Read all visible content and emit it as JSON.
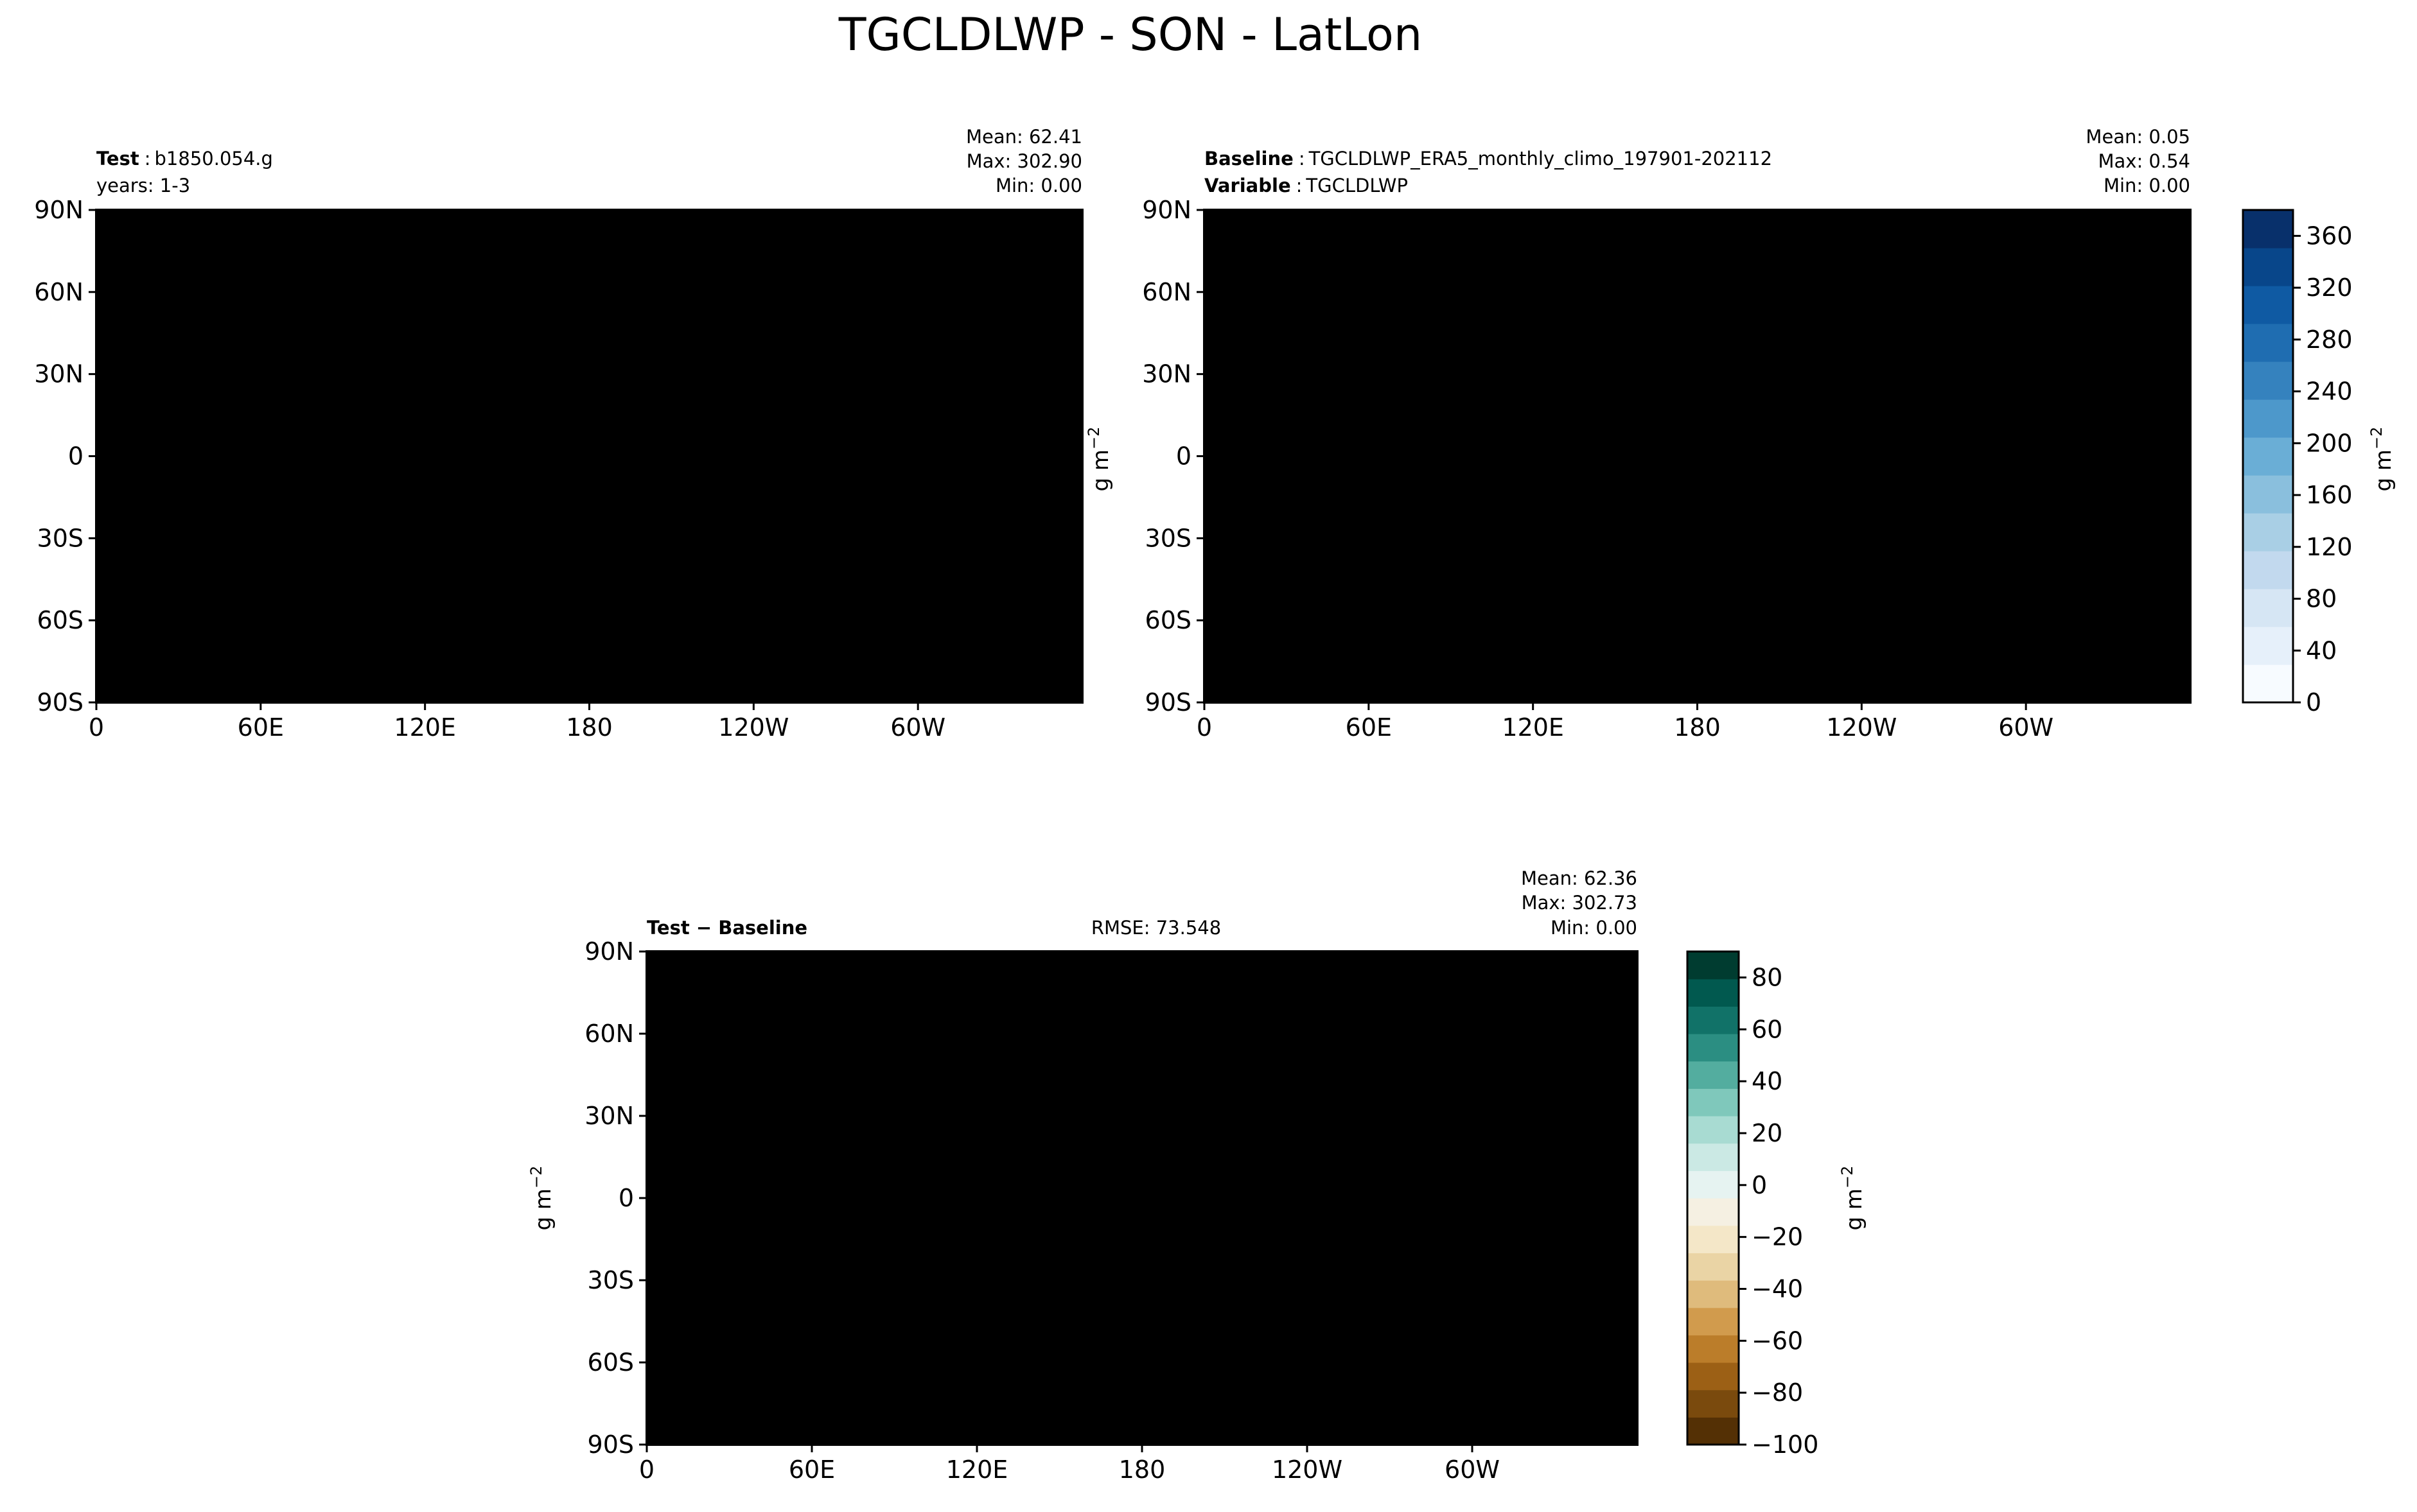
{
  "figure": {
    "title": "TGCLDLWP - SON - LatLon"
  },
  "colors": {
    "blues": [
      "#f7fbff",
      "#e6f0fa",
      "#d6e6f4",
      "#c2d9ee",
      "#a9cfe5",
      "#8abfdd",
      "#6aaed6",
      "#4d98cb",
      "#3582be",
      "#1f6db1",
      "#0f5aa3",
      "#08468a",
      "#08306b"
    ],
    "brbg": [
      "#543005",
      "#7a4a0d",
      "#9c6015",
      "#bb7d2a",
      "#d19b4d",
      "#dfbb7c",
      "#ead4a5",
      "#f4e7c8",
      "#f5f0e2",
      "#e6f3f1",
      "#cbe9e4",
      "#a8dbd2",
      "#7fc8bb",
      "#53ad9f",
      "#2b8e82",
      "#117268",
      "#01594f",
      "#003c30"
    ],
    "land_line": "#000000"
  },
  "charts": [
    {
      "id": "test",
      "type": "heatmap",
      "left": {
        "label": "Test",
        "text": "b1850.054.g"
      },
      "left2": {
        "text": "years: 1-3"
      },
      "stats": {
        "mean": "Mean: 62.41",
        "max": "Max: 302.90",
        "min": "Min:  0.00"
      },
      "xticks": [
        "0",
        "60E",
        "120E",
        "180",
        "120W",
        "60W"
      ],
      "yticks": [
        "90N",
        "60N",
        "30N",
        "0",
        "30S",
        "60S",
        "90S"
      ],
      "ylim": [
        -90,
        90
      ],
      "clim": [
        0,
        380
      ]
    },
    {
      "id": "baseline",
      "type": "heatmap",
      "left": {
        "label": "Baseline",
        "text": "TGCLDLWP_ERA5_monthly_climo_197901-202112"
      },
      "left2": {
        "label": "Variable",
        "text": "TGCLDLWP"
      },
      "stats": {
        "mean": "Mean:  0.05",
        "max": "Max:  0.54",
        "min": "Min:  0.00"
      },
      "xticks": [
        "0",
        "60E",
        "120E",
        "180",
        "120W",
        "60W"
      ],
      "yticks": [
        "90N",
        "60N",
        "30N",
        "0",
        "30S",
        "60S",
        "90S"
      ],
      "ylabel": "g m",
      "ylabel_sup": "−2",
      "colorbar": {
        "ticks": [
          "0",
          "40",
          "80",
          "120",
          "160",
          "200",
          "240",
          "280",
          "320",
          "360"
        ],
        "values": [
          0,
          40,
          80,
          120,
          160,
          200,
          240,
          280,
          320,
          360
        ],
        "range": [
          0,
          380
        ],
        "label": "g m",
        "label_sup": "−2"
      }
    },
    {
      "id": "diff",
      "type": "heatmap",
      "left": {
        "label": "Test − Baseline"
      },
      "center": "RMSE: 73.548",
      "stats": {
        "mean": "Mean: 62.36",
        "max": "Max: 302.73",
        "min": "Min:  0.00"
      },
      "xticks": [
        "0",
        "60E",
        "120E",
        "180",
        "120W",
        "60W"
      ],
      "yticks": [
        "90N",
        "60N",
        "30N",
        "0",
        "30S",
        "60S",
        "90S"
      ],
      "ylabel": "g m",
      "ylabel_sup": "−2",
      "colorbar": {
        "ticks": [
          "80",
          "60",
          "40",
          "20",
          "0",
          "−20",
          "−40",
          "−60",
          "−80",
          "−100"
        ],
        "values": [
          80,
          60,
          40,
          20,
          0,
          -20,
          -40,
          -60,
          -80,
          -100
        ],
        "range": [
          -100,
          90
        ],
        "label": "g m",
        "label_sup": "−2"
      }
    }
  ]
}
